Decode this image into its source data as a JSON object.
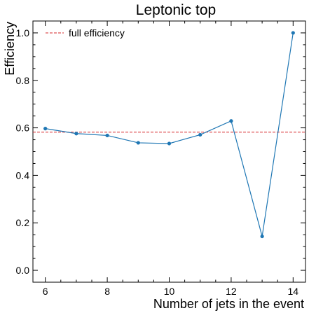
{
  "chart_data": {
    "type": "line",
    "title": "Leptonic top",
    "xlabel": "Number of jets in the event",
    "ylabel": "Efficiency",
    "xlim": [
      5.6,
      14.4
    ],
    "ylim": [
      -0.05,
      1.05
    ],
    "x_ticks": [
      6,
      8,
      10,
      12,
      14
    ],
    "x_tick_labels": [
      "6",
      "8",
      "10",
      "12",
      "14"
    ],
    "y_ticks": [
      0.0,
      0.2,
      0.4,
      0.6,
      0.8,
      1.0
    ],
    "y_tick_labels": [
      "0.0",
      "0.2",
      "0.4",
      "0.6",
      "0.8",
      "1.0"
    ],
    "grid": false,
    "legend_position": "top-left",
    "series": [
      {
        "type": "line",
        "color": "#1f77b4",
        "marker": "circle",
        "x": [
          6,
          7,
          8,
          9,
          10,
          11,
          12,
          13,
          14
        ],
        "y": [
          0.597,
          0.576,
          0.568,
          0.537,
          0.534,
          0.571,
          0.629,
          0.143,
          1.0
        ]
      }
    ],
    "reference_lines": [
      {
        "name": "full efficiency",
        "orientation": "horizontal",
        "value": 0.582,
        "color": "#d62728",
        "style": "dashed"
      }
    ]
  }
}
